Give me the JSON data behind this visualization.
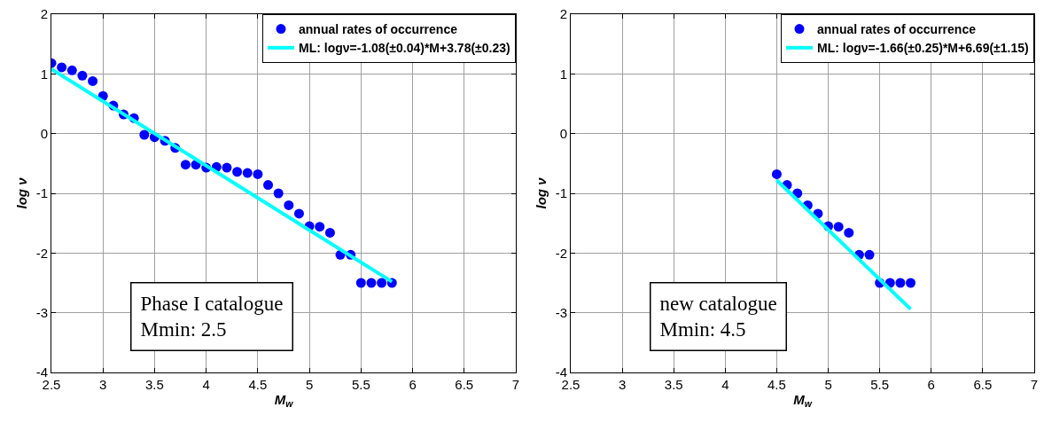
{
  "chart_data": [
    {
      "type": "scatter",
      "xlabel": "M$_{w}$",
      "ylabel": "log ν",
      "xlim": [
        2.5,
        7
      ],
      "ylim": [
        -4,
        2
      ],
      "xticks": [
        2.5,
        3,
        3.5,
        4,
        4.5,
        5,
        5.5,
        6,
        6.5,
        7
      ],
      "yticks": [
        -4,
        -3,
        -2,
        -1,
        0,
        1,
        2
      ],
      "grid": true,
      "legend": "top right",
      "annotations": [
        "Phase I catalogue\nMmin: 2.5"
      ],
      "series": [
        {
          "name": "annual rates of occurrence",
          "marker": "circle",
          "color": "#0000ff",
          "x": [
            2.5,
            2.6,
            2.7,
            2.8,
            2.9,
            3.0,
            3.1,
            3.2,
            3.3,
            3.4,
            3.5,
            3.6,
            3.7,
            3.8,
            3.9,
            4.0,
            4.1,
            4.2,
            4.3,
            4.4,
            4.5,
            4.6,
            4.7,
            4.8,
            4.9,
            5.0,
            5.1,
            5.2,
            5.3,
            5.4,
            5.5,
            5.6,
            5.7,
            5.8
          ],
          "values": [
            1.18,
            1.11,
            1.06,
            0.97,
            0.88,
            0.63,
            0.47,
            0.32,
            0.26,
            -0.02,
            -0.06,
            -0.12,
            -0.24,
            -0.52,
            -0.52,
            -0.57,
            -0.56,
            -0.57,
            -0.64,
            -0.66,
            -0.68,
            -0.86,
            -1.0,
            -1.2,
            -1.34,
            -1.55,
            -1.56,
            -1.66,
            -2.03,
            -2.03,
            -2.5,
            -2.5,
            -2.5,
            -2.5
          ]
        },
        {
          "name": "ML: logν=-1.08(±0.04)*M+3.78(±0.23)",
          "type": "line",
          "marker": "none",
          "color": "#00ffff",
          "line_style": "solid",
          "x": [
            2.5,
            5.8
          ],
          "values": [
            1.08,
            -2.48
          ]
        }
      ]
    },
    {
      "type": "scatter",
      "xlabel": "M$_{w}$",
      "ylabel": "log ν",
      "xlim": [
        2.5,
        7
      ],
      "ylim": [
        -4,
        2
      ],
      "xticks": [
        2.5,
        3,
        3.5,
        4,
        4.5,
        5,
        5.5,
        6,
        6.5,
        7
      ],
      "yticks": [
        -4,
        -3,
        -2,
        -1,
        0,
        1,
        2
      ],
      "grid": true,
      "legend": "top right",
      "annotations": [
        "new catalogue\nMmin: 4.5"
      ],
      "series": [
        {
          "name": "annual rates of occurrence",
          "marker": "circle",
          "color": "#0000ff",
          "x": [
            4.5,
            4.6,
            4.7,
            4.8,
            4.9,
            5.0,
            5.1,
            5.2,
            5.3,
            5.4,
            5.5,
            5.6,
            5.7,
            5.8
          ],
          "values": [
            -0.68,
            -0.86,
            -1.0,
            -1.2,
            -1.34,
            -1.55,
            -1.56,
            -1.66,
            -2.03,
            -2.03,
            -2.5,
            -2.5,
            -2.5,
            -2.5
          ]
        },
        {
          "name": "ML: logν=-1.66(±0.25)*M+6.69(±1.15)",
          "type": "line",
          "marker": "none",
          "color": "#00ffff",
          "line_style": "solid",
          "x": [
            4.5,
            5.8
          ],
          "values": [
            -0.78,
            -2.94
          ]
        }
      ]
    }
  ]
}
